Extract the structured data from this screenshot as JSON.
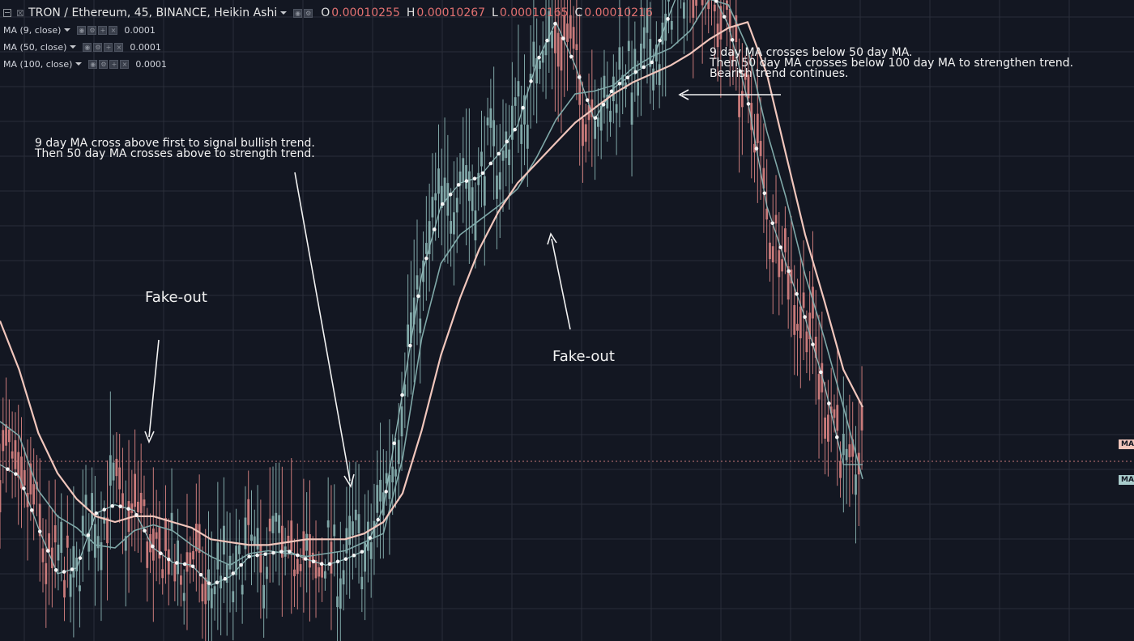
{
  "header": {
    "symbol_line": "TRON / Ethereum, 45, BINANCE, Heikin Ashi",
    "ohlc": [
      {
        "key": "O",
        "value": "0.00010255"
      },
      {
        "key": "H",
        "value": "0.00010267"
      },
      {
        "key": "L",
        "value": "0.00010165"
      },
      {
        "key": "C",
        "value": "0.00010216"
      }
    ]
  },
  "indicators": [
    {
      "label": "MA (9, close)",
      "value": "0.0001",
      "color": "#8fb7b7"
    },
    {
      "label": "MA (50, close)",
      "value": "0.0001",
      "color": "#7fa8a8"
    },
    {
      "label": "MA (100, close)",
      "value": "0.0001",
      "color": "#f1c6bc"
    }
  ],
  "annotations": {
    "bullish_1": "9 day MA cross above first to signal bullish trend.",
    "bullish_2": "Then 50 day MA crosses above to strength trend.",
    "bearish_1": "9 day MA crosses below 50 day MA.",
    "bearish_2": "Then 50 day MA crosses below 100 day MA to strengthen trend.",
    "bearish_3": "Bearish trend continues.",
    "fakeout_left": "Fake-out",
    "fakeout_mid": "Fake-out"
  },
  "price_tags": [
    {
      "label": "MA",
      "color": "#f1c6bc"
    },
    {
      "label": "MA",
      "color": "#a9cccc"
    }
  ],
  "colors": {
    "background": "#131722",
    "grid": "#2a2e39",
    "bull": "#7fa6a6",
    "bear": "#c97a7a",
    "ma9": "#8fb7b7",
    "ma50": "#7fa8a8",
    "ma100": "#f1c6bc",
    "price_line": "#c97a7a"
  },
  "chart_data": {
    "type": "line",
    "style": "Heikin Ashi candlesticks with moving average overlays",
    "x": [
      0,
      5,
      10,
      15,
      20,
      25,
      30,
      35,
      40,
      45,
      50,
      55,
      60,
      65,
      70,
      75,
      80,
      85,
      90,
      95,
      100,
      105,
      110,
      115,
      120,
      125,
      130,
      135,
      140,
      145,
      150,
      155,
      160,
      165,
      170,
      175,
      180,
      185,
      190,
      195,
      200,
      205,
      210,
      215,
      220,
      225
    ],
    "series": [
      {
        "name": "MA (9, close)",
        "values": [
          60,
          56,
          38,
          22,
          24,
          43,
          46,
          44,
          31,
          26,
          25,
          18,
          21,
          28,
          29,
          30,
          27,
          25,
          27,
          30,
          45,
          85,
          126,
          150,
          158,
          160,
          168,
          178,
          200,
          214,
          199,
          180,
          191,
          196,
          200,
          218,
          235,
          226,
          213,
          187,
          150,
          130,
          111,
          88,
          60,
          60
        ]
      },
      {
        "name": "MA (50, close)",
        "values": [
          75,
          70,
          51,
          42,
          38,
          32,
          31,
          37,
          39,
          37,
          32,
          28,
          25,
          29,
          30,
          29,
          28,
          29,
          30,
          33,
          36,
          62,
          104,
          130,
          140,
          145,
          150,
          156,
          167,
          180,
          189,
          190,
          192,
          198,
          202,
          205,
          211,
          222,
          220,
          205,
          176,
          153,
          126,
          104,
          80,
          55
        ]
      },
      {
        "name": "MA (100, close)",
        "values": [
          110,
          93,
          71,
          57,
          48,
          42,
          40,
          42,
          42,
          40,
          38,
          34,
          33,
          32,
          32,
          33,
          34,
          34,
          34,
          36,
          40,
          50,
          72,
          98,
          118,
          135,
          148,
          158,
          165,
          172,
          179,
          184,
          189,
          193,
          196,
          199,
          203,
          208,
          212,
          214,
          196,
          168,
          140,
          117,
          93,
          80
        ]
      }
    ]
  }
}
